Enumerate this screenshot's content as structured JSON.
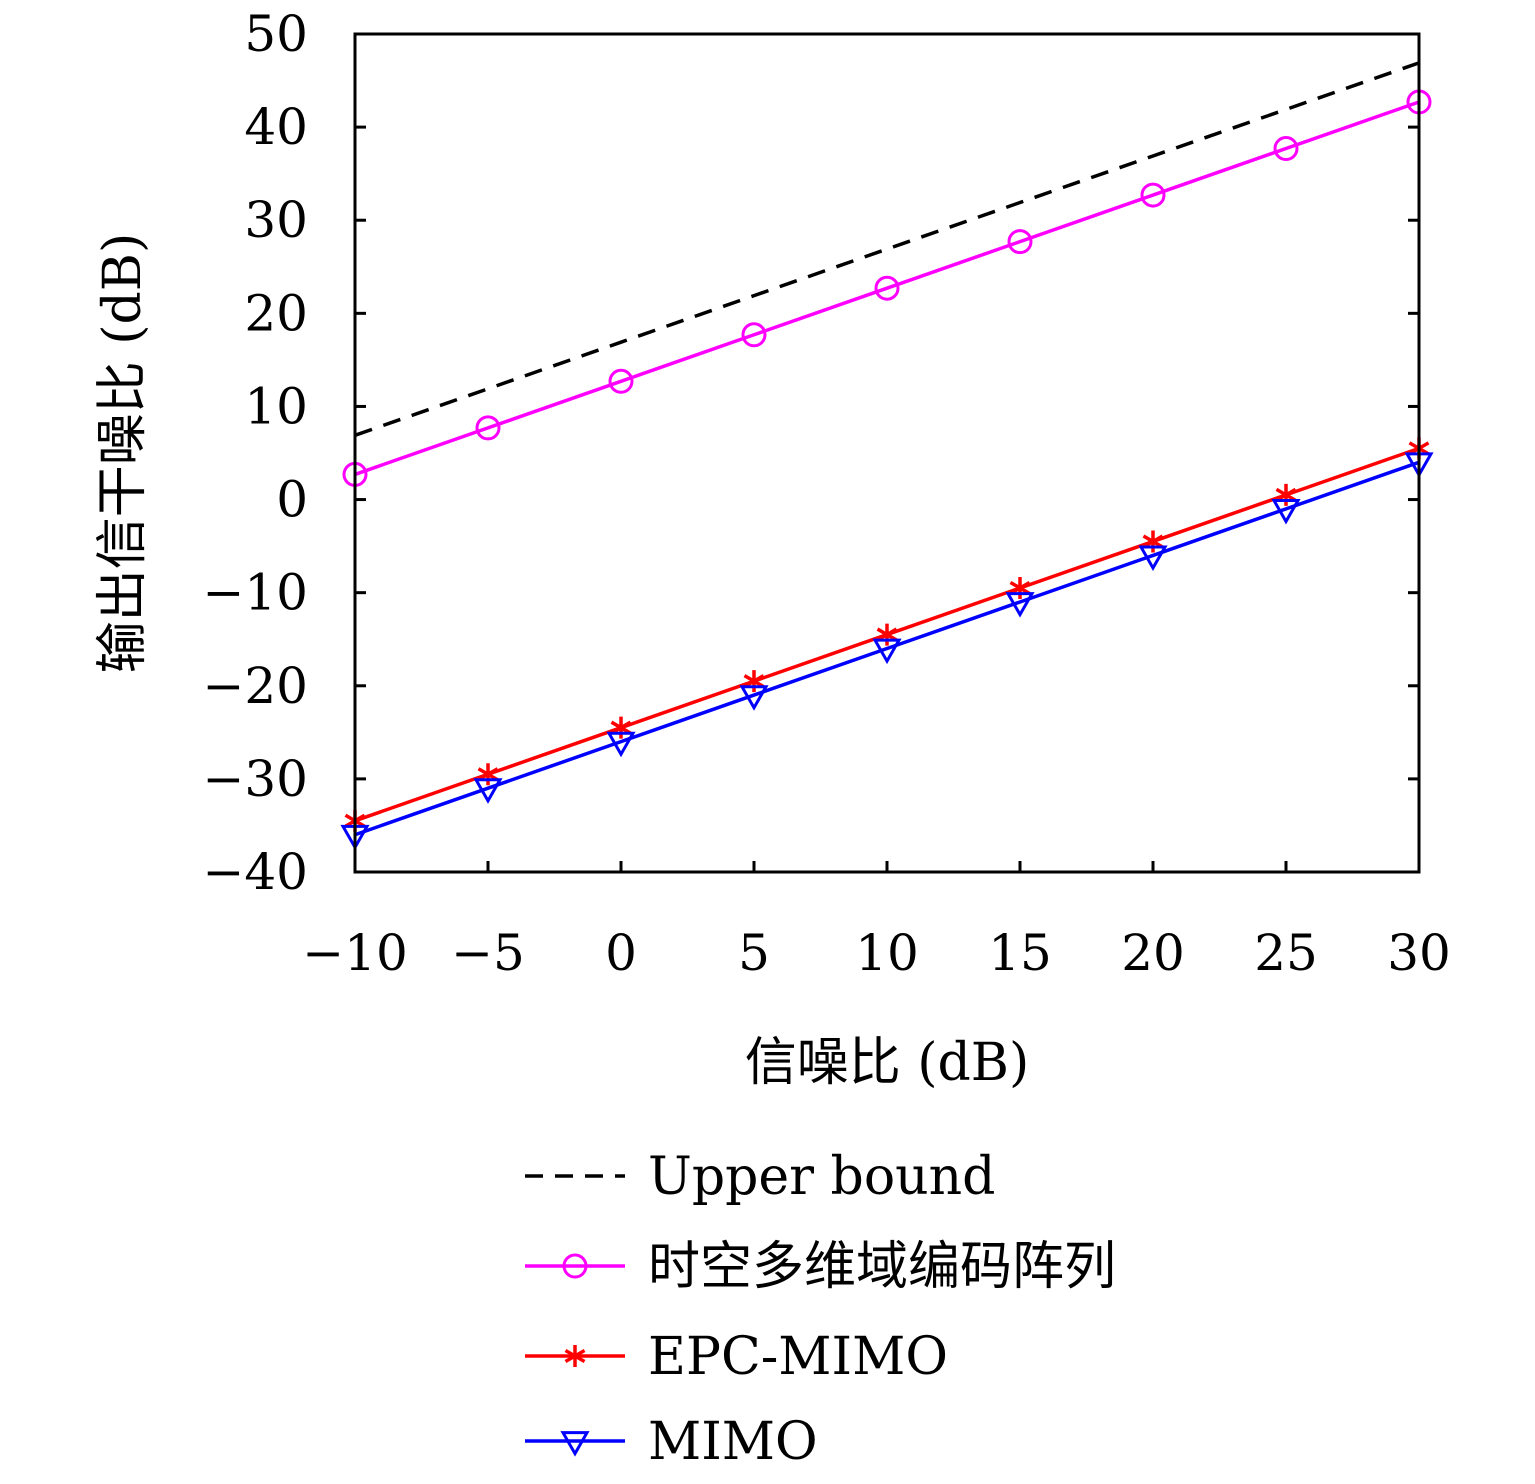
{
  "chart_data": {
    "type": "line",
    "xlabel": "信噪比 (dB)",
    "ylabel": "输出信干噪比 (dB)",
    "xlim": [
      -10,
      30
    ],
    "ylim": [
      -40,
      50
    ],
    "x_ticks": [
      -10,
      -5,
      0,
      5,
      10,
      15,
      20,
      25,
      30
    ],
    "y_ticks": [
      50,
      40,
      30,
      20,
      10,
      0,
      -10,
      -20,
      -30,
      -40
    ],
    "x_tick_labels": [
      "−10",
      "−5",
      "0",
      "5",
      "10",
      "15",
      "20",
      "25",
      "30"
    ],
    "y_tick_labels": [
      "50",
      "40",
      "30",
      "20",
      "10",
      "0",
      "−10",
      "−20",
      "−30",
      "−40"
    ],
    "grid": false,
    "legend_position": "below",
    "x": [
      -10,
      -5,
      0,
      5,
      10,
      15,
      20,
      25,
      30
    ],
    "series": [
      {
        "name": "Upper bound",
        "color": "#000000",
        "dash": "dashed",
        "marker": "none",
        "values": [
          6.9,
          11.9,
          16.9,
          21.9,
          26.9,
          31.9,
          36.9,
          41.9,
          46.9
        ]
      },
      {
        "name": "时空多维域编码阵列",
        "color": "#ff00ff",
        "dash": "solid",
        "marker": "circle",
        "values": [
          2.7,
          7.7,
          12.7,
          17.7,
          22.7,
          27.7,
          32.7,
          37.7,
          42.7
        ]
      },
      {
        "name": "EPC-MIMO",
        "color": "#ff0000",
        "dash": "solid",
        "marker": "asterisk",
        "values": [
          -34.5,
          -29.5,
          -24.5,
          -19.5,
          -14.5,
          -9.5,
          -4.5,
          0.5,
          5.5
        ]
      },
      {
        "name": "MIMO",
        "color": "#0000ff",
        "dash": "solid",
        "marker": "triangle-down",
        "values": [
          -36,
          -31,
          -26,
          -21,
          -16,
          -11,
          -6,
          -1,
          4
        ]
      }
    ]
  }
}
